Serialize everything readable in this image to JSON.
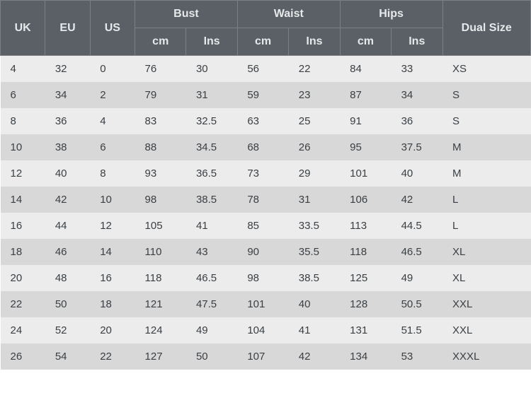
{
  "header": {
    "uk": "UK",
    "eu": "EU",
    "us": "US",
    "bust": "Bust",
    "waist": "Waist",
    "hips": "Hips",
    "dual": "Dual Size",
    "cm": "cm",
    "ins": "Ins"
  },
  "style": {
    "header_bg": "#5a6066",
    "header_fg": "#e6e8ea",
    "header_border": "#7a8086",
    "row_even_bg": "#ececec",
    "row_odd_bg": "#d8d8d8",
    "body_fg": "#3a3f44",
    "header_fontsize": 16,
    "body_fontsize": 15
  },
  "columns": [
    "uk",
    "eu",
    "us",
    "bust_cm",
    "bust_ins",
    "waist_cm",
    "waist_ins",
    "hips_cm",
    "hips_ins",
    "dual"
  ],
  "rows": [
    {
      "uk": "4",
      "eu": "32",
      "us": "0",
      "bust_cm": "76",
      "bust_ins": "30",
      "waist_cm": "56",
      "waist_ins": "22",
      "hips_cm": "84",
      "hips_ins": "33",
      "dual": "XS"
    },
    {
      "uk": "6",
      "eu": "34",
      "us": "2",
      "bust_cm": "79",
      "bust_ins": "31",
      "waist_cm": "59",
      "waist_ins": "23",
      "hips_cm": "87",
      "hips_ins": "34",
      "dual": "S"
    },
    {
      "uk": "8",
      "eu": "36",
      "us": "4",
      "bust_cm": "83",
      "bust_ins": "32.5",
      "waist_cm": "63",
      "waist_ins": "25",
      "hips_cm": "91",
      "hips_ins": "36",
      "dual": "S"
    },
    {
      "uk": "10",
      "eu": "38",
      "us": "6",
      "bust_cm": "88",
      "bust_ins": "34.5",
      "waist_cm": "68",
      "waist_ins": "26",
      "hips_cm": "95",
      "hips_ins": "37.5",
      "dual": "M"
    },
    {
      "uk": "12",
      "eu": "40",
      "us": "8",
      "bust_cm": "93",
      "bust_ins": "36.5",
      "waist_cm": "73",
      "waist_ins": "29",
      "hips_cm": "101",
      "hips_ins": "40",
      "dual": "M"
    },
    {
      "uk": "14",
      "eu": "42",
      "us": "10",
      "bust_cm": "98",
      "bust_ins": "38.5",
      "waist_cm": "78",
      "waist_ins": "31",
      "hips_cm": "106",
      "hips_ins": "42",
      "dual": "L"
    },
    {
      "uk": "16",
      "eu": "44",
      "us": "12",
      "bust_cm": "105",
      "bust_ins": "41",
      "waist_cm": "85",
      "waist_ins": "33.5",
      "hips_cm": "113",
      "hips_ins": "44.5",
      "dual": "L"
    },
    {
      "uk": "18",
      "eu": "46",
      "us": "14",
      "bust_cm": "110",
      "bust_ins": "43",
      "waist_cm": "90",
      "waist_ins": "35.5",
      "hips_cm": "118",
      "hips_ins": "46.5",
      "dual": "XL"
    },
    {
      "uk": "20",
      "eu": "48",
      "us": "16",
      "bust_cm": "118",
      "bust_ins": "46.5",
      "waist_cm": "98",
      "waist_ins": "38.5",
      "hips_cm": "125",
      "hips_ins": "49",
      "dual": "XL"
    },
    {
      "uk": "22",
      "eu": "50",
      "us": "18",
      "bust_cm": "121",
      "bust_ins": "47.5",
      "waist_cm": "101",
      "waist_ins": "40",
      "hips_cm": "128",
      "hips_ins": "50.5",
      "dual": "XXL"
    },
    {
      "uk": "24",
      "eu": "52",
      "us": "20",
      "bust_cm": "124",
      "bust_ins": "49",
      "waist_cm": "104",
      "waist_ins": "41",
      "hips_cm": "131",
      "hips_ins": "51.5",
      "dual": "XXL"
    },
    {
      "uk": "26",
      "eu": "54",
      "us": "22",
      "bust_cm": "127",
      "bust_ins": "50",
      "waist_cm": "107",
      "waist_ins": "42",
      "hips_cm": "134",
      "hips_ins": "53",
      "dual": "XXXL"
    }
  ]
}
